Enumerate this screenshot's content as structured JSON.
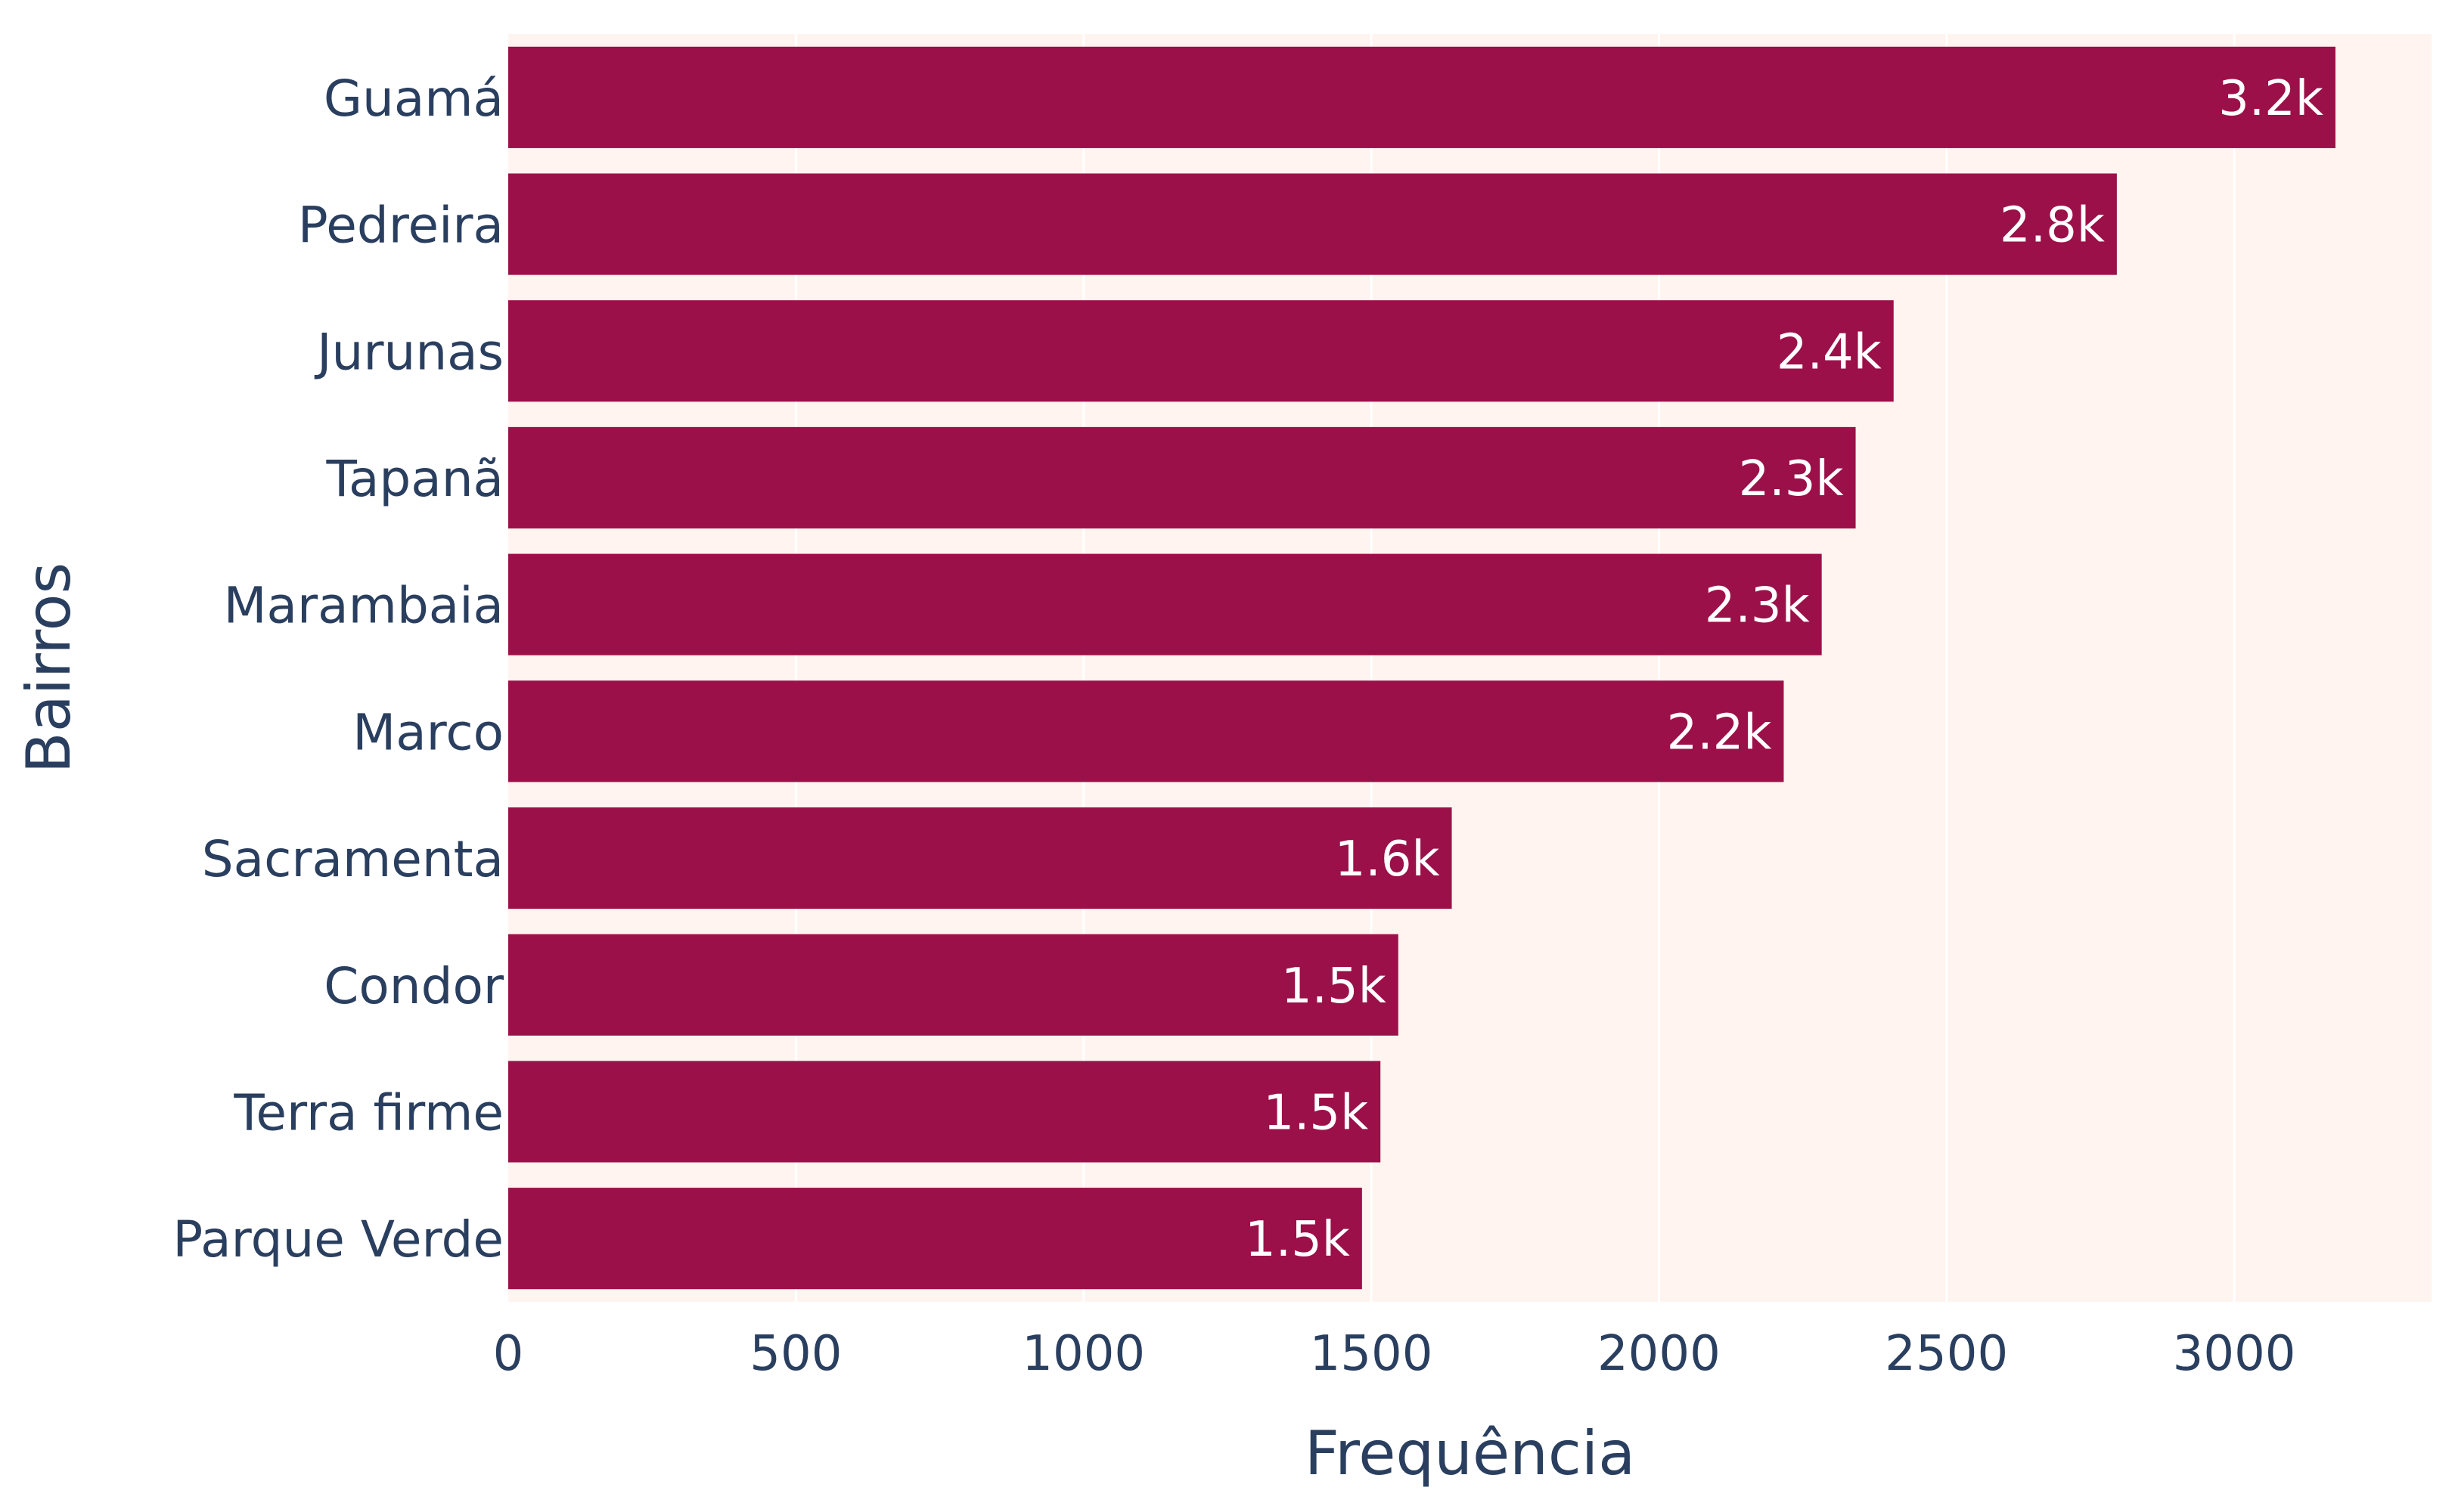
{
  "chart_data": {
    "type": "bar",
    "orientation": "horizontal",
    "title": "",
    "xlabel": "Frequência",
    "ylabel": "Bairros",
    "xlim": [
      0,
      3343
    ],
    "xticks": [
      0,
      500,
      1000,
      1500,
      2000,
      2500,
      3000
    ],
    "xtick_labels": [
      "0",
      "500",
      "1000",
      "1500",
      "2000",
      "2500",
      "3000"
    ],
    "grid": true,
    "legend": "none",
    "categories": [
      "Guamá",
      "Pedreira",
      "Jurunas",
      "Tapanã",
      "Marambaia",
      "Marco",
      "Sacramenta",
      "Condor",
      "Terra firme",
      "Parque Verde"
    ],
    "values": [
      3176,
      2796,
      2408,
      2342,
      2283,
      2217,
      1640,
      1547,
      1516,
      1484
    ],
    "data_labels": [
      "3.2k",
      "2.8k",
      "2.4k",
      "2.3k",
      "2.3k",
      "2.2k",
      "1.6k",
      "1.5k",
      "1.5k",
      "1.5k"
    ],
    "colors": {
      "bar": "#9b1048",
      "plot_background": "#fff4ef",
      "grid": "#ffffff",
      "text": "#2a3f5f",
      "data_label": "#ffffff"
    }
  }
}
